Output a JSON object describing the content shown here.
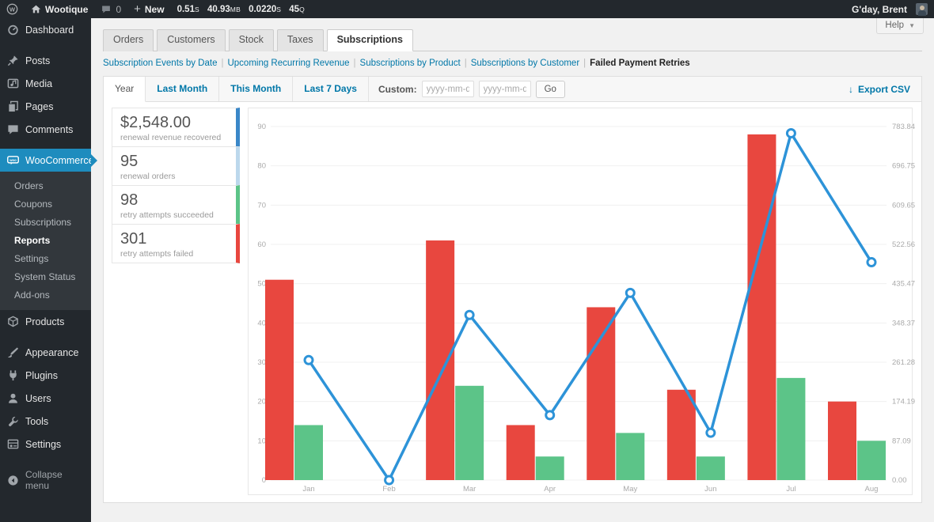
{
  "admin_bar": {
    "site_name": "Wootique",
    "comments_count": "0",
    "new_label": "New",
    "qm_stats": [
      {
        "value": "0.51",
        "unit": "S"
      },
      {
        "value": "40.93",
        "unit": "MB"
      },
      {
        "value": "0.0220",
        "unit": "S"
      },
      {
        "value": "45",
        "unit": "Q"
      }
    ],
    "greeting": "G'day, Brent"
  },
  "help": {
    "label": "Help"
  },
  "sidebar": {
    "items_top": [
      {
        "id": "dashboard",
        "label": "Dashboard",
        "icon": "dashboard-icon",
        "gap": false
      },
      {
        "id": "posts",
        "label": "Posts",
        "icon": "pin-icon",
        "gap": true
      },
      {
        "id": "media",
        "label": "Media",
        "icon": "media-icon",
        "gap": false
      },
      {
        "id": "pages",
        "label": "Pages",
        "icon": "pages-icon",
        "gap": false
      },
      {
        "id": "comments",
        "label": "Comments",
        "icon": "comment-icon",
        "gap": false
      },
      {
        "id": "woocommerce",
        "label": "WooCommerce",
        "icon": "woocommerce-icon",
        "gap": true,
        "active": true
      }
    ],
    "woocommerce_submenu": [
      {
        "label": "Orders",
        "current": false
      },
      {
        "label": "Coupons",
        "current": false
      },
      {
        "label": "Subscriptions",
        "current": false
      },
      {
        "label": "Reports",
        "current": true
      },
      {
        "label": "Settings",
        "current": false
      },
      {
        "label": "System Status",
        "current": false
      },
      {
        "label": "Add-ons",
        "current": false
      }
    ],
    "items_bottom": [
      {
        "id": "products",
        "label": "Products",
        "icon": "products-icon",
        "gap": false
      },
      {
        "id": "appearance",
        "label": "Appearance",
        "icon": "appearance-icon",
        "gap": true
      },
      {
        "id": "plugins",
        "label": "Plugins",
        "icon": "plugins-icon",
        "gap": false
      },
      {
        "id": "users",
        "label": "Users",
        "icon": "users-icon",
        "gap": false
      },
      {
        "id": "tools",
        "label": "Tools",
        "icon": "tools-icon",
        "gap": false
      },
      {
        "id": "settings",
        "label": "Settings",
        "icon": "settings-icon",
        "gap": false
      },
      {
        "id": "collapse",
        "label": "Collapse menu",
        "icon": "collapse-icon",
        "gap": true,
        "muted": true
      }
    ]
  },
  "tabs": [
    {
      "label": "Orders",
      "active": false
    },
    {
      "label": "Customers",
      "active": false
    },
    {
      "label": "Stock",
      "active": false
    },
    {
      "label": "Taxes",
      "active": false
    },
    {
      "label": "Subscriptions",
      "active": true
    }
  ],
  "subnav": {
    "links": [
      "Subscription Events by Date",
      "Upcoming Recurring Revenue",
      "Subscriptions by Product",
      "Subscriptions by Customer"
    ],
    "current": "Failed Payment Retries"
  },
  "range_bar": {
    "tabs": [
      {
        "label": "Year",
        "active": true
      },
      {
        "label": "Last Month",
        "active": false
      },
      {
        "label": "This Month",
        "active": false
      },
      {
        "label": "Last 7 Days",
        "active": false
      }
    ],
    "custom_label": "Custom:",
    "date_placeholder": "yyyy-mm-dd",
    "go_label": "Go",
    "export_label": "Export CSV",
    "export_icon": "↓"
  },
  "stats": [
    {
      "value": "$2,548.00",
      "label": "renewal revenue recovered",
      "accent": "#3a87c8"
    },
    {
      "value": "95",
      "label": "renewal orders",
      "accent": "#bcd8ec"
    },
    {
      "value": "98",
      "label": "retry attempts succeeded",
      "accent": "#5cc488"
    },
    {
      "value": "301",
      "label": "retry attempts failed",
      "accent": "#e8473f"
    }
  ],
  "chart_data": {
    "type": "bar",
    "categories": [
      "Jan",
      "Feb",
      "Mar",
      "Apr",
      "May",
      "Jun",
      "Jul",
      "Aug"
    ],
    "series": [
      {
        "name": "retry attempts failed",
        "render": "bar",
        "axis": "left",
        "color": "#e8473f",
        "values": [
          51,
          0,
          61,
          14,
          44,
          23,
          88,
          20
        ]
      },
      {
        "name": "retry attempts succeeded",
        "render": "bar",
        "axis": "left",
        "color": "#5cc488",
        "values": [
          14,
          0,
          24,
          6,
          12,
          6,
          26,
          10
        ]
      },
      {
        "name": "renewal revenue recovered",
        "render": "line",
        "axis": "right",
        "color": "#2d93d8",
        "values": [
          266,
          0,
          366,
          144,
          415,
          105,
          769,
          483
        ]
      }
    ],
    "left_axis": {
      "min": 0,
      "max": 90,
      "step": 10,
      "ticks": [
        "0",
        "10",
        "20",
        "30",
        "40",
        "50",
        "60",
        "70",
        "80",
        "90"
      ]
    },
    "right_axis": {
      "min": 0,
      "max": 783.84,
      "ticks_top_to_bottom": [
        "783.84",
        "696.75",
        "609.65",
        "522.56",
        "435.47",
        "348.37",
        "261.28",
        "174.19",
        "87.09",
        "0.00"
      ]
    },
    "grid": true,
    "legend_position": "left-column",
    "title": "Failed Payment Retries"
  }
}
